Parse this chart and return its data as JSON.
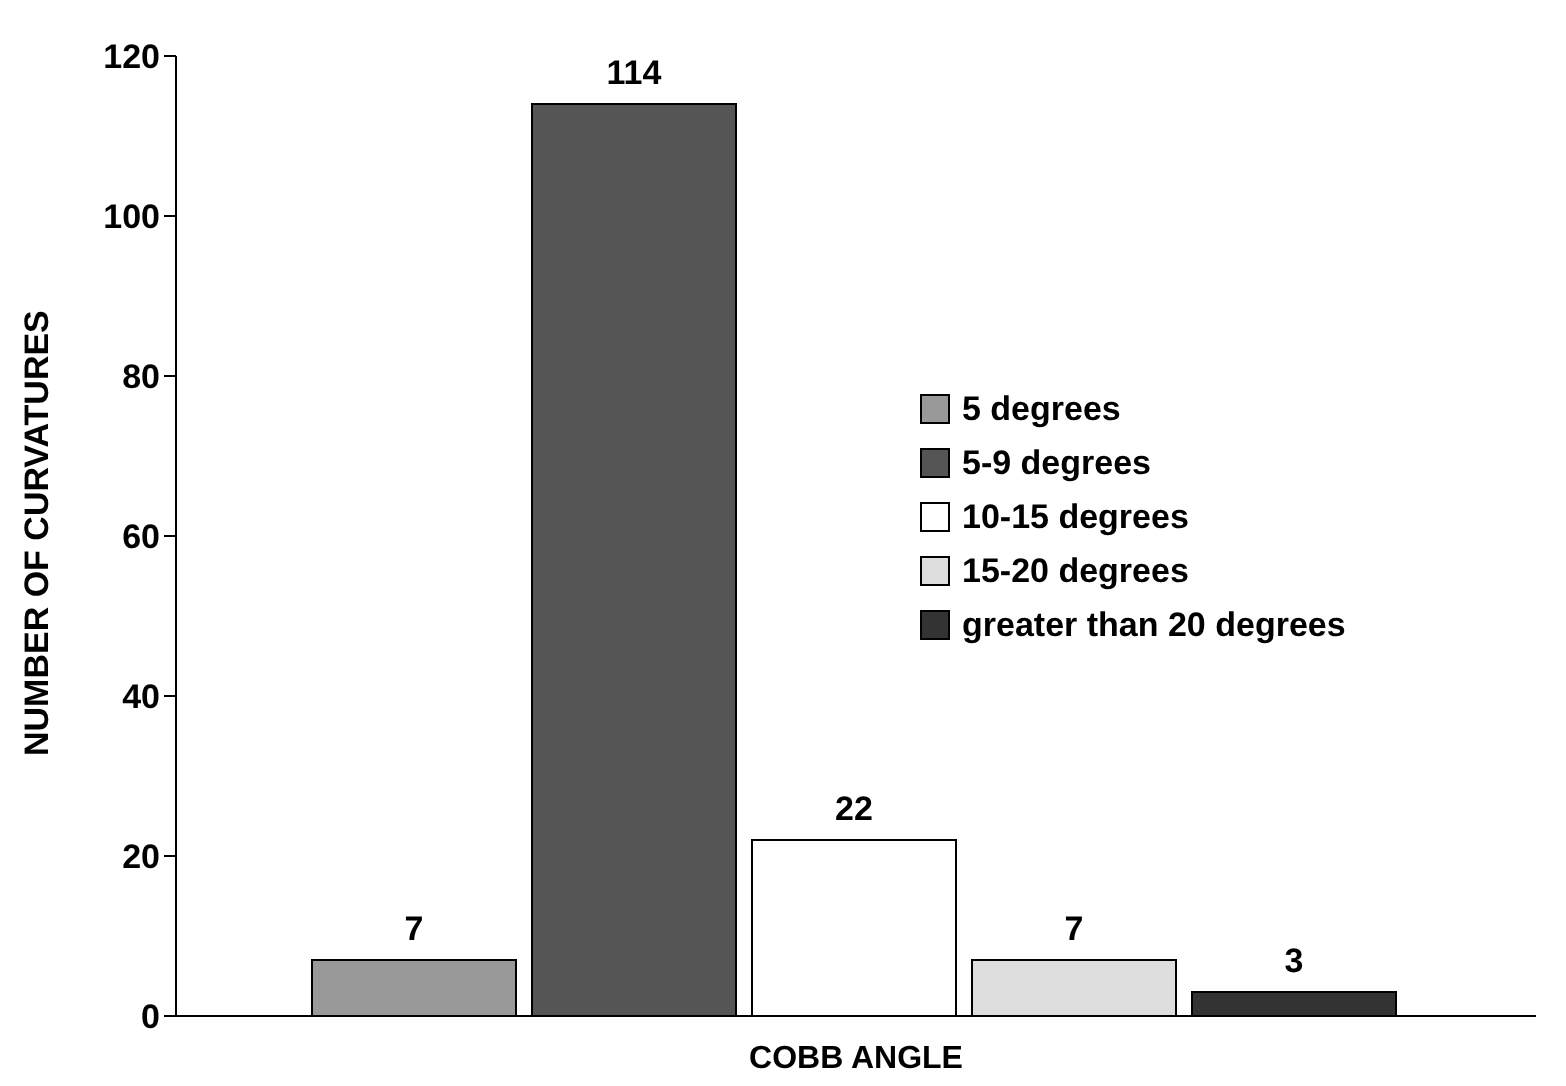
{
  "chart_data": {
    "type": "bar",
    "xlabel": "COBB ANGLE",
    "ylabel": "NUMBER OF CURVATURES",
    "categories": [
      null
    ],
    "series": [
      {
        "name": "5 degrees",
        "color": "#999999",
        "values": [
          7
        ]
      },
      {
        "name": "5-9 degrees",
        "color": "#555555",
        "values": [
          114
        ]
      },
      {
        "name": "10-15 degrees",
        "color": "#ffffff",
        "values": [
          22
        ]
      },
      {
        "name": "15-20 degrees",
        "color": "#dddddd",
        "values": [
          7
        ]
      },
      {
        "name": "greater than 20 degrees",
        "color": "#333333",
        "values": [
          3
        ]
      }
    ],
    "ylim": [
      0,
      120
    ],
    "yticks": [
      0,
      20,
      40,
      60,
      80,
      100,
      120
    ],
    "data_labels": true,
    "legend": "right",
    "grid": false
  }
}
